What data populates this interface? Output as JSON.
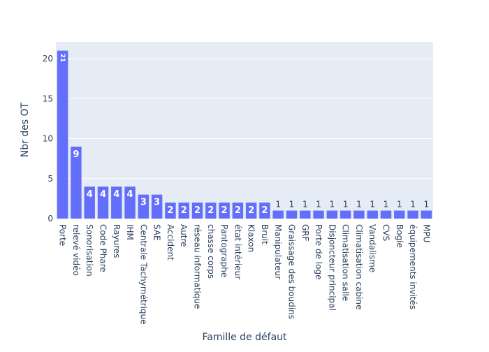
{
  "chart_data": {
    "type": "bar",
    "title": "",
    "xlabel": "Famille de défaut",
    "ylabel": "Nbr des OT",
    "ylim": [
      0,
      22.1
    ],
    "yticks": [
      0,
      5,
      10,
      15,
      20
    ],
    "grid": true,
    "legend": "none",
    "colors": {
      "bar": "#636efa",
      "plot_bg": "#e5ecf6",
      "grid": "#ffffff",
      "text": "#2a3f5f"
    },
    "categories": [
      "Porte",
      "relevé vidéo",
      "Sonorisation",
      "Code Phare",
      "Rayures",
      "IHM",
      "Centrale Tachymétrique",
      "SAE",
      "Accident",
      "Autre",
      "réseau informatique",
      "chasse corps",
      "Pantographe",
      "état intérieur",
      "Klaxon",
      "Bruit",
      "Manipulateur",
      "Graissage des boudins",
      "GRF",
      "Porte de loge",
      "Disjoncteur principal",
      "Climatisation salle",
      "Climatisation cabine",
      "Vandalisme",
      "CVS",
      "Bogie",
      "équipements invités",
      "MPU"
    ],
    "values": [
      21,
      9,
      4,
      4,
      4,
      4,
      3,
      3,
      2,
      2,
      2,
      2,
      2,
      2,
      2,
      2,
      1,
      1,
      1,
      1,
      1,
      1,
      1,
      1,
      1,
      1,
      1,
      1
    ],
    "data_labels": [
      "21",
      "9",
      "4",
      "4",
      "4",
      "4",
      "3",
      "3",
      "2",
      "2",
      "2",
      "2",
      "2",
      "2",
      "2",
      "2",
      "1",
      "1",
      "1",
      "1",
      "1",
      "1",
      "1",
      "1",
      "1",
      "1",
      "1",
      "1"
    ]
  }
}
